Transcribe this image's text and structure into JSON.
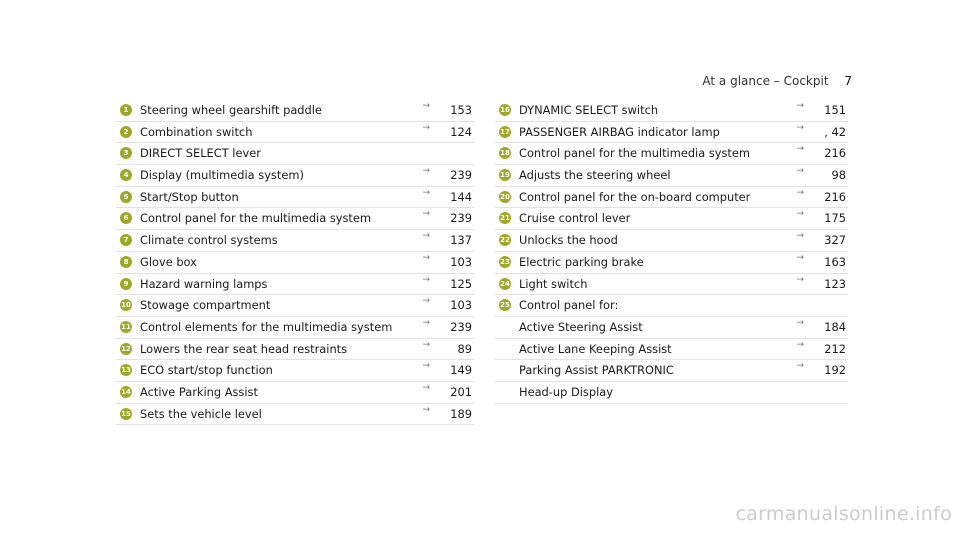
{
  "header": {
    "title": "At a glance – Cockpit",
    "page_number": "7"
  },
  "left_items": [
    {
      "num": "1",
      "label": "Steering wheel gearshift paddle",
      "arrow": "→",
      "page": "153"
    },
    {
      "num": "2",
      "label": "Combination switch",
      "arrow": "→",
      "page": "124"
    },
    {
      "num": "3",
      "label": "DIRECT SELECT lever",
      "arrow": "",
      "page": ""
    },
    {
      "num": "4",
      "label": "Display (multimedia system)",
      "arrow": "→",
      "page": "239"
    },
    {
      "num": "5",
      "label": "Start/Stop button",
      "arrow": "→",
      "page": "144"
    },
    {
      "num": "6",
      "label": "Control panel for the multimedia system",
      "arrow": "→",
      "page": "239"
    },
    {
      "num": "7",
      "label": "Climate control systems",
      "arrow": "→",
      "page": "137"
    },
    {
      "num": "8",
      "label": "Glove box",
      "arrow": "→",
      "page": "103"
    },
    {
      "num": "9",
      "label": "Hazard warning lamps",
      "arrow": "→",
      "page": "125"
    },
    {
      "num": "10",
      "label": "Stowage compartment",
      "arrow": "→",
      "page": "103"
    },
    {
      "num": "11",
      "label": "Control elements for the multimedia system",
      "arrow": "→",
      "page": "239"
    },
    {
      "num": "12",
      "label": "Lowers the rear seat head restraints",
      "arrow": "→",
      "page": "89"
    },
    {
      "num": "13",
      "label": "ECO start/stop function",
      "arrow": "→",
      "page": "149"
    },
    {
      "num": "14",
      "label": "Active Parking Assist",
      "arrow": "→",
      "page": "201"
    },
    {
      "num": "15",
      "label": "Sets the vehicle level",
      "arrow": "→",
      "page": "189"
    }
  ],
  "right_items": [
    {
      "num": "16",
      "label": "DYNAMIC SELECT switch",
      "arrow": "→",
      "page": "151"
    },
    {
      "num": "17",
      "label": "PASSENGER AIRBAG indicator lamp",
      "arrow": "→",
      "page": ", 42"
    },
    {
      "num": "18",
      "label": "Control panel for the multimedia system",
      "arrow": "→",
      "page": "216"
    },
    {
      "num": "19",
      "label": "Adjusts the steering wheel",
      "arrow": "→",
      "page": "98"
    },
    {
      "num": "20",
      "label": "Control panel for the on-board computer",
      "arrow": "→",
      "page": "216"
    },
    {
      "num": "21",
      "label": "Cruise control lever",
      "arrow": "→",
      "page": "175"
    },
    {
      "num": "22",
      "label": "Unlocks the hood",
      "arrow": "→",
      "page": "327"
    },
    {
      "num": "23",
      "label": "Electric parking brake",
      "arrow": "→",
      "page": "163"
    },
    {
      "num": "24",
      "label": "Light switch",
      "arrow": "→",
      "page": "123"
    },
    {
      "num": "25",
      "label": "Control panel for:",
      "arrow": "",
      "page": ""
    },
    {
      "num": "",
      "label": "Active Steering Assist",
      "arrow": "→",
      "page": "184"
    },
    {
      "num": "",
      "label": "Active Lane Keeping Assist",
      "arrow": "→",
      "page": "212"
    },
    {
      "num": "",
      "label": "Parking Assist PARKTRONIC",
      "arrow": "→",
      "page": "192"
    },
    {
      "num": "",
      "label": "Head-up Display",
      "arrow": "",
      "page": ""
    }
  ],
  "footer": {
    "watermark": "carmanualsonline.info"
  }
}
